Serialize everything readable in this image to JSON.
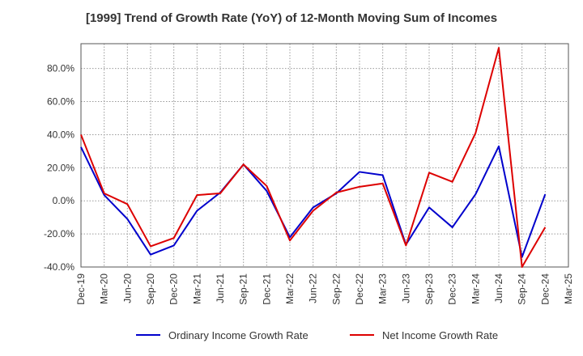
{
  "chart_data": {
    "type": "line",
    "title": "[1999]  Trend of Growth Rate (YoY) of 12-Month Moving Sum of Incomes",
    "xlabel": "",
    "ylabel": "",
    "categories": [
      "Dec-19",
      "Mar-20",
      "Jun-20",
      "Sep-20",
      "Dec-20",
      "Mar-21",
      "Jun-21",
      "Sep-21",
      "Dec-21",
      "Mar-22",
      "Jun-22",
      "Sep-22",
      "Dec-22",
      "Mar-23",
      "Jun-23",
      "Sep-23",
      "Dec-23",
      "Mar-24",
      "Jun-24",
      "Sep-24",
      "Dec-24",
      "Mar-25"
    ],
    "ylim": [
      -40,
      95
    ],
    "yticks": [
      -40,
      -20,
      0,
      20,
      40,
      60,
      80
    ],
    "ytick_labels": [
      "-40.0%",
      "-20.0%",
      "0.0%",
      "20.0%",
      "40.0%",
      "60.0%",
      "80.0%"
    ],
    "grid": true,
    "legend_position": "bottom",
    "series": [
      {
        "name": "Ordinary Income Growth Rate",
        "color": "#0000cc",
        "values": [
          32.5,
          3.5,
          -11,
          -32.5,
          -27,
          -6,
          5,
          22,
          6,
          -22,
          -4,
          4.5,
          17.5,
          15.5,
          -26.5,
          -4,
          -16,
          4,
          33,
          -34,
          4,
          null
        ]
      },
      {
        "name": "Net Income Growth Rate",
        "color": "#dd0000",
        "values": [
          40,
          4.5,
          -2,
          -27.5,
          -22.5,
          3.5,
          4.5,
          22,
          9,
          -24,
          -6,
          5,
          8.5,
          10.5,
          -27,
          17,
          11.5,
          41,
          92.5,
          -40,
          -16,
          null
        ]
      }
    ]
  }
}
